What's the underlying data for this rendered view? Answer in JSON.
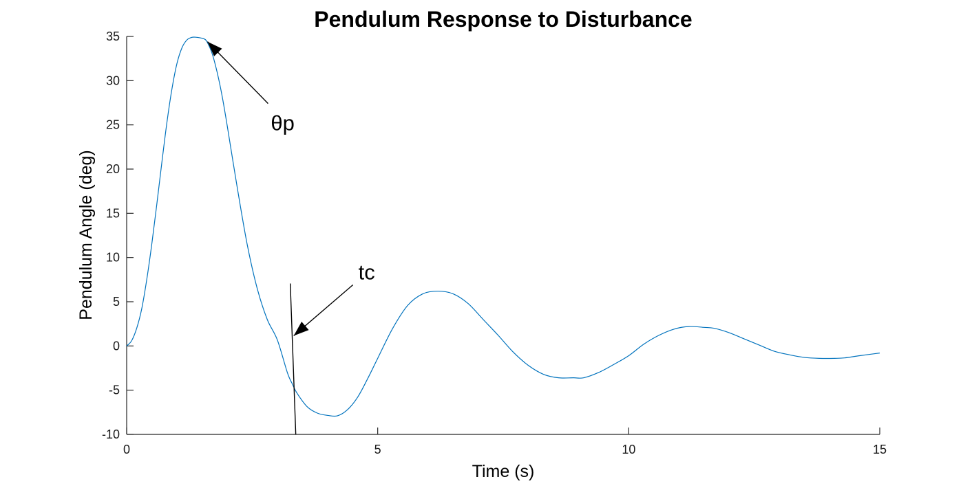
{
  "chart_data": {
    "type": "line",
    "title": "Pendulum Response to Disturbance",
    "xlabel": "Time (s)",
    "ylabel": "Pendulum Angle (deg)",
    "xlim": [
      0,
      15
    ],
    "ylim": [
      -10,
      35
    ],
    "xticks": [
      0,
      5,
      10,
      15
    ],
    "xtick_labels": [
      "0",
      "5",
      "10",
      "15"
    ],
    "yticks": [
      -10,
      -5,
      0,
      5,
      10,
      15,
      20,
      25,
      30,
      35
    ],
    "ytick_labels": [
      "-10",
      "-5",
      "0",
      "5",
      "10",
      "15",
      "20",
      "25",
      "30",
      "35"
    ],
    "grid": false,
    "legend": "none",
    "series": [
      {
        "color": "#0072BD",
        "x": [
          0,
          0.1,
          0.2,
          0.3,
          0.4,
          0.5,
          0.6,
          0.7,
          0.8,
          0.9,
          1.0,
          1.1,
          1.2,
          1.3,
          1.4,
          1.5,
          1.55,
          1.6,
          1.7,
          1.8,
          1.9,
          2.0,
          2.2,
          2.4,
          2.6,
          2.8,
          3.0,
          3.2,
          3.3,
          3.4,
          3.6,
          3.8,
          4.0,
          4.2,
          4.4,
          4.6,
          4.8,
          5.0,
          5.3,
          5.6,
          5.9,
          6.2,
          6.5,
          6.8,
          7.1,
          7.4,
          7.7,
          8.0,
          8.3,
          8.6,
          8.9,
          9.1,
          9.4,
          9.7,
          10.0,
          10.3,
          10.6,
          10.9,
          11.2,
          11.5,
          11.7,
          12.0,
          12.3,
          12.6,
          12.9,
          13.2,
          13.5,
          13.8,
          14.1,
          14.3,
          14.6,
          15.0
        ],
        "y": [
          0,
          0.6,
          2.0,
          4.2,
          7.5,
          11.5,
          16.0,
          20.7,
          25.2,
          29.0,
          31.9,
          33.7,
          34.6,
          34.9,
          34.9,
          34.8,
          34.7,
          34.4,
          33.1,
          31.0,
          28.3,
          25.0,
          18.0,
          11.5,
          6.5,
          3.0,
          0.7,
          -3.0,
          -4.3,
          -5.4,
          -6.9,
          -7.6,
          -7.85,
          -7.9,
          -7.2,
          -5.8,
          -3.7,
          -1.4,
          2.0,
          4.6,
          5.9,
          6.2,
          5.9,
          4.8,
          3.0,
          1.2,
          -0.7,
          -2.2,
          -3.2,
          -3.6,
          -3.6,
          -3.6,
          -3.0,
          -2.1,
          -1.1,
          0.2,
          1.2,
          1.9,
          2.2,
          2.1,
          2.0,
          1.5,
          0.8,
          0.1,
          -0.6,
          -1.0,
          -1.3,
          -1.4,
          -1.4,
          -1.35,
          -1.1,
          -0.8
        ]
      }
    ],
    "annotations": [
      {
        "text": "θp",
        "x": 1.5,
        "y": 34.8
      },
      {
        "text": "tc",
        "x": 3.3,
        "y": 1.0
      }
    ]
  }
}
